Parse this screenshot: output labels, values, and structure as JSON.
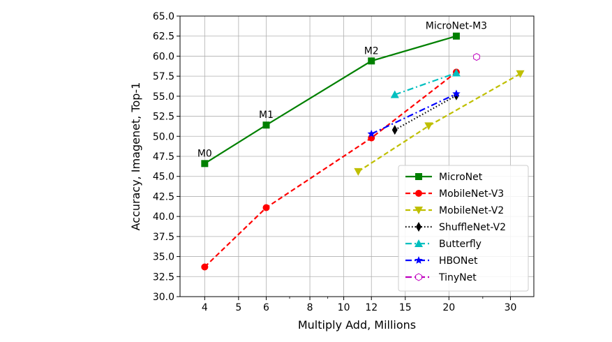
{
  "chart_data": {
    "type": "line",
    "xlabel": "Multiply Add, Millions",
    "ylabel": "Accuracy, Imagenet, Top-1",
    "xscale": "log",
    "xlim": [
      3.4,
      35
    ],
    "ylim": [
      30.0,
      65.0
    ],
    "xticks": [
      4,
      5,
      6,
      8,
      10,
      12,
      15,
      20,
      30
    ],
    "yticks": [
      30.0,
      32.5,
      35.0,
      37.5,
      40.0,
      42.5,
      45.0,
      47.5,
      50.0,
      52.5,
      55.0,
      57.5,
      60.0,
      62.5,
      65.0
    ],
    "grid": true,
    "legend_position": "lower right",
    "series": [
      {
        "name": "MicroNet",
        "color": "#008000",
        "marker": "square",
        "dash": "solid",
        "points": [
          [
            4,
            46.6
          ],
          [
            6,
            51.4
          ],
          [
            12,
            59.4
          ],
          [
            21,
            62.5
          ]
        ]
      },
      {
        "name": "MobileNet-V3",
        "color": "#ff0000",
        "marker": "circle",
        "dash": "dashed",
        "points": [
          [
            4,
            33.7
          ],
          [
            6,
            41.1
          ],
          [
            12,
            49.8
          ],
          [
            21,
            58.0
          ]
        ]
      },
      {
        "name": "MobileNet-V2",
        "color": "#bfbf00",
        "marker": "triangle-down",
        "dash": "dashed",
        "points": [
          [
            11,
            45.6
          ],
          [
            17.5,
            51.3
          ],
          [
            32,
            57.8
          ]
        ]
      },
      {
        "name": "ShuffleNet-V2",
        "color": "#000000",
        "marker": "thin-diamond",
        "dash": "dotted",
        "points": [
          [
            14,
            50.8
          ],
          [
            21,
            55.1
          ]
        ]
      },
      {
        "name": "Butterfly",
        "color": "#00bfbf",
        "marker": "triangle-up",
        "dash": "dashdot",
        "points": [
          [
            14,
            55.2
          ],
          [
            21,
            57.9
          ]
        ]
      },
      {
        "name": "HBONet",
        "color": "#0000ff",
        "marker": "star",
        "dash": "dashdot",
        "points": [
          [
            12,
            50.3
          ],
          [
            21,
            55.3
          ]
        ]
      },
      {
        "name": "TinyNet",
        "color": "#bf00bf",
        "marker": "hexagon-open",
        "dash": "dashdot",
        "points": [
          [
            24,
            59.9
          ]
        ]
      }
    ],
    "annotations": [
      {
        "text": "M0",
        "x": 4,
        "y": 46.6
      },
      {
        "text": "M1",
        "x": 6,
        "y": 51.4
      },
      {
        "text": "M2",
        "x": 12,
        "y": 59.4
      },
      {
        "text": "MicroNet-M3",
        "x": 21,
        "y": 62.5
      }
    ]
  }
}
